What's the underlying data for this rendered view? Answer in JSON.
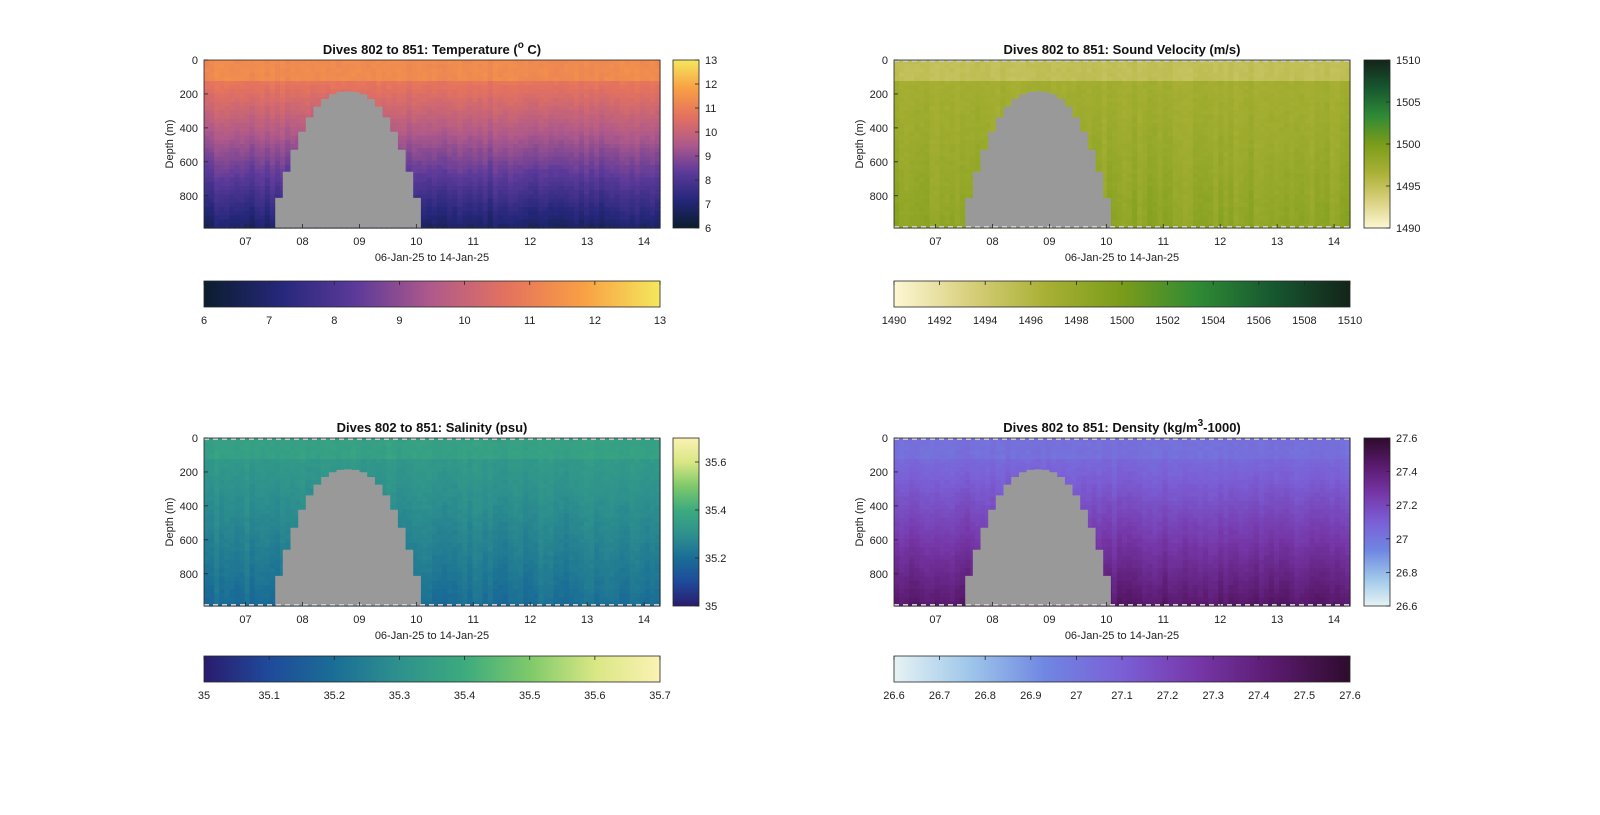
{
  "figure": {
    "suptitle": ""
  },
  "chart_data": [
    {
      "type": "heatmap",
      "title": "Dives 802 to 851: Temperature (",
      "title_sup": "o",
      "title_suffix": " C)",
      "xlabel": "06-Jan-25 to 14-Jan-25",
      "ylabel": "Depth (m)",
      "x_ticks": [
        "07",
        "08",
        "09",
        "10",
        "11",
        "12",
        "13",
        "14"
      ],
      "x_tick_days": [
        7,
        8,
        9,
        10,
        11,
        12,
        13,
        14
      ],
      "x_range": [
        6.27,
        14.28
      ],
      "y_ticks": [
        0,
        200,
        400,
        600,
        800
      ],
      "y_range": [
        0,
        990
      ],
      "y_reversed": true,
      "colormap": [
        "#0b1d2e",
        "#25277a",
        "#5c3a9a",
        "#b05a8a",
        "#e4725e",
        "#f9a044",
        "#f4e85c"
      ],
      "clim": [
        6,
        13
      ],
      "colorbar_right_ticks": [
        13,
        12,
        11,
        10,
        9,
        8,
        7,
        6
      ],
      "colorbar_bottom_ticks": [
        6,
        7,
        8,
        9,
        10,
        11,
        12,
        13
      ],
      "gap_fill": "#999999",
      "dashed_border": false,
      "profile": {
        "surface": 11.3,
        "thermocline_start": 10.8,
        "deep": 6.8
      }
    },
    {
      "type": "heatmap",
      "title": "Dives 802 to 851: Sound Velocity (m/s)",
      "title_sup": "",
      "title_suffix": "",
      "xlabel": "06-Jan-25 to 14-Jan-25",
      "ylabel": "Depth (m)",
      "x_ticks": [
        "07",
        "08",
        "09",
        "10",
        "11",
        "12",
        "13",
        "14"
      ],
      "x_tick_days": [
        7,
        8,
        9,
        10,
        11,
        12,
        13,
        14
      ],
      "x_range": [
        6.27,
        14.28
      ],
      "y_ticks": [
        0,
        200,
        400,
        600,
        800
      ],
      "y_range": [
        0,
        990
      ],
      "y_reversed": true,
      "colormap": [
        "#fdf7d4",
        "#d8cf7c",
        "#a8b034",
        "#7a9c1a",
        "#2f8a35",
        "#16572f",
        "#14241a"
      ],
      "clim": [
        1490,
        1510
      ],
      "colorbar_right_ticks": [
        1510,
        1505,
        1500,
        1495,
        1490
      ],
      "colorbar_bottom_ticks": [
        1490,
        1492,
        1494,
        1496,
        1498,
        1500,
        1502,
        1504,
        1506,
        1508,
        1510
      ],
      "gap_fill": "#999999",
      "dashed_border": true,
      "profile": {
        "surface": 1495.0,
        "thermocline_start": 1497.0,
        "deep": 1498.6
      }
    },
    {
      "type": "heatmap",
      "title": "Dives 802 to 851: Salinity (psu)",
      "title_sup": "",
      "title_suffix": "",
      "xlabel": "06-Jan-25 to 14-Jan-25",
      "ylabel": "Depth (m)",
      "x_ticks": [
        "07",
        "08",
        "09",
        "10",
        "11",
        "12",
        "13",
        "14"
      ],
      "x_tick_days": [
        7,
        8,
        9,
        10,
        11,
        12,
        13,
        14
      ],
      "x_range": [
        6.27,
        14.28
      ],
      "y_ticks": [
        0,
        200,
        400,
        600,
        800
      ],
      "y_range": [
        0,
        990
      ],
      "y_reversed": true,
      "colormap": [
        "#2a1b6e",
        "#1f4a9a",
        "#1a6e96",
        "#2e918d",
        "#3cab7e",
        "#7ec96a",
        "#d9e784",
        "#fbf2b3"
      ],
      "clim": [
        35.0,
        35.7
      ],
      "colorbar_right_ticks": [
        35.6,
        35.4,
        35.2,
        35
      ],
      "colorbar_bottom_ticks": [
        35,
        35.1,
        35.2,
        35.3,
        35.4,
        35.5,
        35.6,
        35.7
      ],
      "gap_fill": "#999999",
      "dashed_border": true,
      "profile": {
        "surface": 35.36,
        "thermocline_start": 35.33,
        "deep": 35.2
      }
    },
    {
      "type": "heatmap",
      "title": "Dives 802 to 851: Density (kg/m",
      "title_sup": "3",
      "title_suffix": "-1000)",
      "xlabel": "06-Jan-25 to 14-Jan-25",
      "ylabel": "Depth (m)",
      "x_ticks": [
        "07",
        "08",
        "09",
        "10",
        "11",
        "12",
        "13",
        "14"
      ],
      "x_tick_days": [
        7,
        8,
        9,
        10,
        11,
        12,
        13,
        14
      ],
      "x_range": [
        6.27,
        14.28
      ],
      "y_ticks": [
        0,
        200,
        400,
        600,
        800
      ],
      "y_range": [
        0,
        990
      ],
      "y_reversed": true,
      "colormap": [
        "#e6f3f3",
        "#9ec6ea",
        "#6f86e2",
        "#7b5fd6",
        "#7637a8",
        "#5a1a6e",
        "#2e0b2c"
      ],
      "clim": [
        26.6,
        27.6
      ],
      "colorbar_right_ticks": [
        27.6,
        27.4,
        27.2,
        27,
        26.8,
        26.6
      ],
      "colorbar_bottom_ticks": [
        26.6,
        26.7,
        26.8,
        26.9,
        27,
        27.1,
        27.2,
        27.3,
        27.4,
        27.5,
        27.6
      ],
      "gap_fill": "#999999",
      "dashed_border": true,
      "profile": {
        "surface": 27.03,
        "thermocline_start": 27.06,
        "deep": 27.45
      }
    }
  ],
  "gap": {
    "start_day": 7.52,
    "end_day": 10.08,
    "top_depth_min": 185,
    "shape": "dome"
  }
}
